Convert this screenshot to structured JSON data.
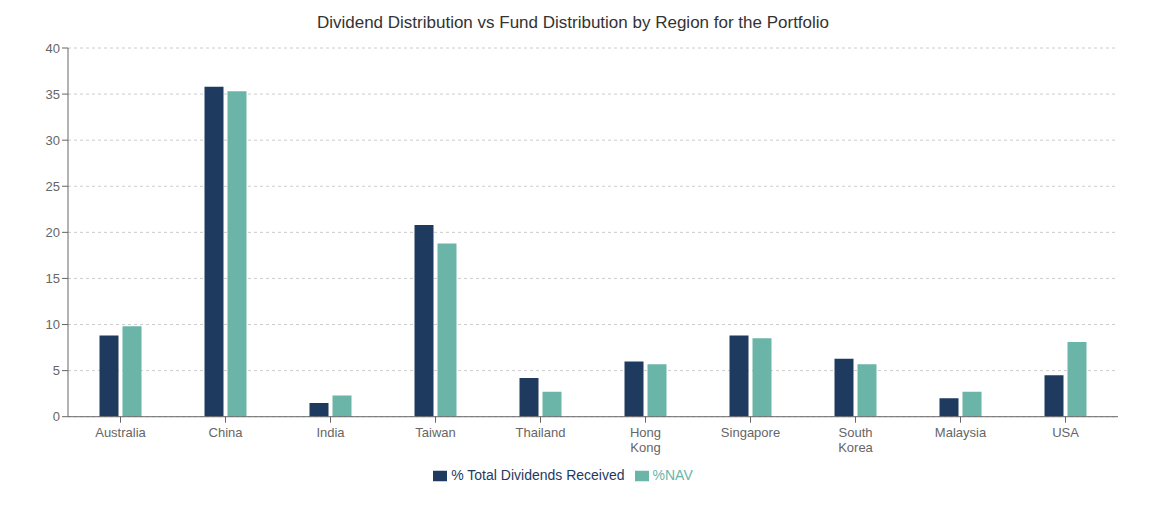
{
  "chart_data": {
    "type": "bar",
    "title": "Dividend Distribution vs Fund Distribution by Region for the Portfolio",
    "categories": [
      "Australia",
      "China",
      "India",
      "Taiwan",
      "Thailand",
      "Hong\nKong",
      "Singapore",
      "South\nKorea",
      "Malaysia",
      "USA"
    ],
    "series": [
      {
        "name": "% Total Dividends Received",
        "color": "#1f3a5f",
        "values": [
          8.8,
          35.8,
          1.5,
          20.8,
          4.2,
          6.0,
          8.8,
          6.3,
          2.0,
          4.5
        ]
      },
      {
        "name": "%NAV",
        "color": "#6ab5a8",
        "values": [
          9.8,
          35.3,
          2.3,
          18.8,
          2.7,
          5.7,
          8.5,
          5.7,
          2.7,
          8.1
        ]
      }
    ],
    "ylim": [
      0,
      40
    ],
    "yticks": [
      0,
      5,
      10,
      15,
      20,
      25,
      30,
      35,
      40
    ],
    "grid": true,
    "legend": "bottom"
  }
}
